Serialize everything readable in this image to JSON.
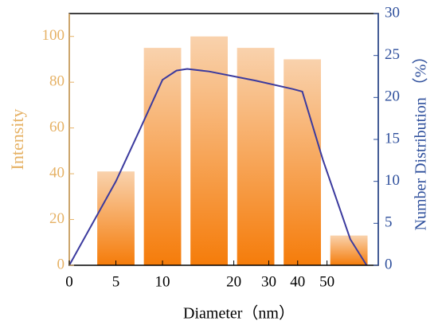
{
  "chart_data": {
    "type": "bar",
    "xlabel": "Diameter（nm）",
    "ylabel": "Intensity",
    "y2label": "Number Distribution （%）",
    "x": [
      1,
      2,
      3,
      4,
      5,
      6
    ],
    "xlim": [
      0,
      6.63
    ],
    "xticks": [
      0,
      {
        "value": 1,
        "label": "5"
      },
      {
        "value": 2,
        "label": "10"
      },
      {
        "value": 3.53,
        "label": "20"
      },
      {
        "value": 4.28,
        "label": "30"
      },
      {
        "value": 4.9,
        "label": "40"
      },
      {
        "value": 5.53,
        "label": "50"
      }
    ],
    "ylim": [
      0,
      110
    ],
    "yticks": [
      0,
      20,
      40,
      60,
      80,
      100
    ],
    "y2lim": [
      0,
      30
    ],
    "y2ticks": [
      0,
      5,
      10,
      15,
      20,
      25,
      30
    ],
    "series": [
      {
        "name": "Intensity",
        "type": "bar",
        "color": "#f68a1e",
        "values": [
          41,
          95,
          100,
          95,
          90,
          13
        ]
      },
      {
        "name": "Number Distribution",
        "type": "line",
        "axis": "y2",
        "color": "#3b3a9e",
        "x": [
          0,
          1,
          1.5,
          2,
          2.3,
          2.53,
          3,
          4,
          4.8,
          5,
          5.44,
          6.03,
          6.38
        ],
        "values": [
          0,
          10,
          16,
          22.1,
          23.2,
          23.4,
          23.1,
          22,
          21,
          20.7,
          12.6,
          3.1,
          0
        ]
      }
    ]
  }
}
